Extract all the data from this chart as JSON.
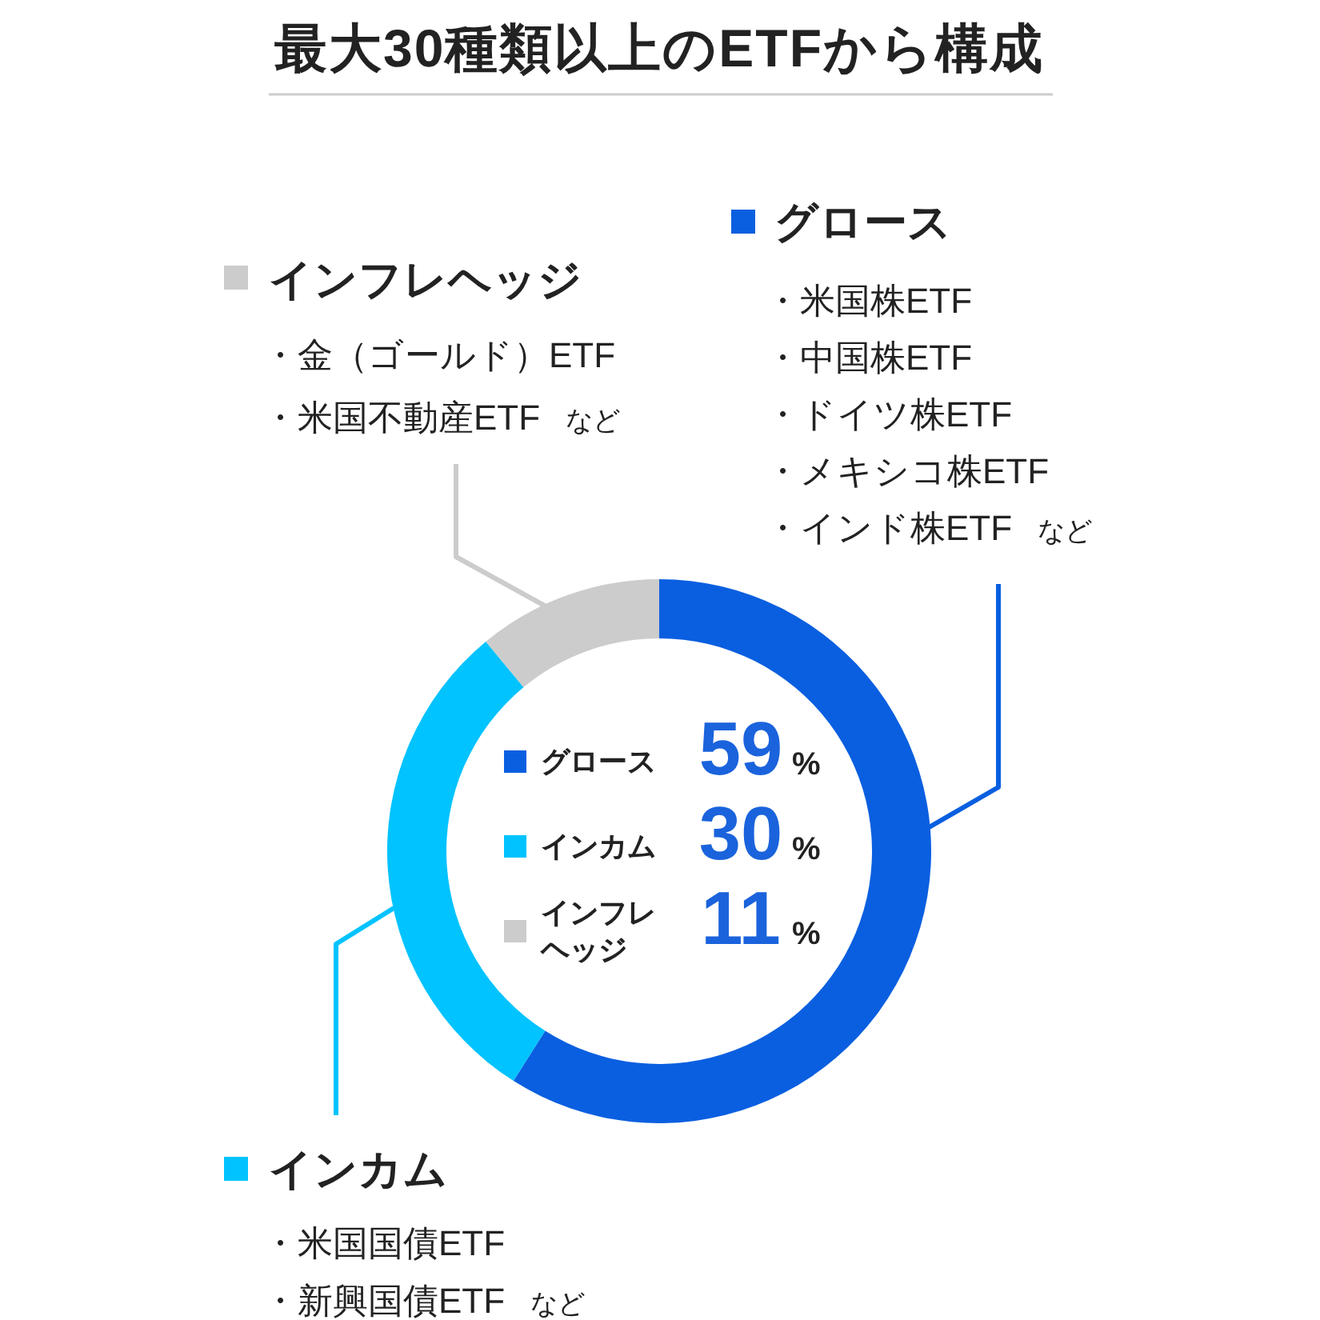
{
  "chart_data": {
    "type": "donut",
    "title": "最大30種類以上のETFから構成",
    "categories": [
      "グロース",
      "インカム",
      "インフレヘッジ"
    ],
    "values": [
      59,
      30,
      11
    ],
    "colors": [
      "#0a5fe0",
      "#00c3ff",
      "#cccccc"
    ],
    "value_labels": [
      "59%",
      "30%",
      "11%"
    ],
    "legend": "center",
    "annotations": [
      "・米国株ETF",
      "・中国株ETF",
      "・ドイツ株ETF",
      "・メキシコ株ETF",
      "・インド株ETF",
      "など",
      "・米国国債ETF",
      "・新興国債ETF",
      "など",
      "・金（ゴールド）ETF",
      "・米国不動産ETF",
      "など"
    ]
  }
}
